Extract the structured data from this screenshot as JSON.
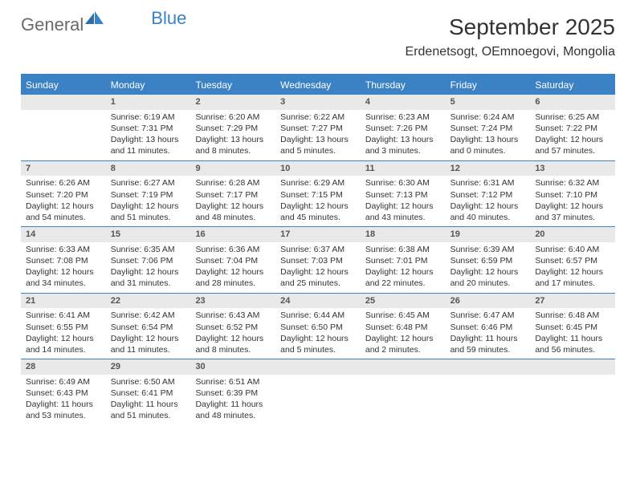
{
  "logo": {
    "general": "General",
    "blue": "Blue"
  },
  "title": "September 2025",
  "location": "Erdenetsogt, OEmnoegovi, Mongolia",
  "colors": {
    "accent": "#3b82c4",
    "header_bg": "#3b82c4",
    "header_text": "#ffffff",
    "daynum_bg": "#e9e9e9",
    "text": "#333333",
    "border": "#3b82c4"
  },
  "typography": {
    "title_fontsize": 28,
    "location_fontsize": 16,
    "dayhead_fontsize": 12,
    "cell_fontsize": 10.5
  },
  "layout": {
    "columns": 7,
    "rows": 5,
    "first_weekday": "Sunday"
  },
  "day_headers": [
    "Sunday",
    "Monday",
    "Tuesday",
    "Wednesday",
    "Thursday",
    "Friday",
    "Saturday"
  ],
  "weeks": [
    [
      {
        "blank": true
      },
      {
        "num": "1",
        "sunrise": "6:19 AM",
        "sunset": "7:31 PM",
        "daylight": "13 hours and 11 minutes."
      },
      {
        "num": "2",
        "sunrise": "6:20 AM",
        "sunset": "7:29 PM",
        "daylight": "13 hours and 8 minutes."
      },
      {
        "num": "3",
        "sunrise": "6:22 AM",
        "sunset": "7:27 PM",
        "daylight": "13 hours and 5 minutes."
      },
      {
        "num": "4",
        "sunrise": "6:23 AM",
        "sunset": "7:26 PM",
        "daylight": "13 hours and 3 minutes."
      },
      {
        "num": "5",
        "sunrise": "6:24 AM",
        "sunset": "7:24 PM",
        "daylight": "13 hours and 0 minutes."
      },
      {
        "num": "6",
        "sunrise": "6:25 AM",
        "sunset": "7:22 PM",
        "daylight": "12 hours and 57 minutes."
      }
    ],
    [
      {
        "num": "7",
        "sunrise": "6:26 AM",
        "sunset": "7:20 PM",
        "daylight": "12 hours and 54 minutes."
      },
      {
        "num": "8",
        "sunrise": "6:27 AM",
        "sunset": "7:19 PM",
        "daylight": "12 hours and 51 minutes."
      },
      {
        "num": "9",
        "sunrise": "6:28 AM",
        "sunset": "7:17 PM",
        "daylight": "12 hours and 48 minutes."
      },
      {
        "num": "10",
        "sunrise": "6:29 AM",
        "sunset": "7:15 PM",
        "daylight": "12 hours and 45 minutes."
      },
      {
        "num": "11",
        "sunrise": "6:30 AM",
        "sunset": "7:13 PM",
        "daylight": "12 hours and 43 minutes."
      },
      {
        "num": "12",
        "sunrise": "6:31 AM",
        "sunset": "7:12 PM",
        "daylight": "12 hours and 40 minutes."
      },
      {
        "num": "13",
        "sunrise": "6:32 AM",
        "sunset": "7:10 PM",
        "daylight": "12 hours and 37 minutes."
      }
    ],
    [
      {
        "num": "14",
        "sunrise": "6:33 AM",
        "sunset": "7:08 PM",
        "daylight": "12 hours and 34 minutes."
      },
      {
        "num": "15",
        "sunrise": "6:35 AM",
        "sunset": "7:06 PM",
        "daylight": "12 hours and 31 minutes."
      },
      {
        "num": "16",
        "sunrise": "6:36 AM",
        "sunset": "7:04 PM",
        "daylight": "12 hours and 28 minutes."
      },
      {
        "num": "17",
        "sunrise": "6:37 AM",
        "sunset": "7:03 PM",
        "daylight": "12 hours and 25 minutes."
      },
      {
        "num": "18",
        "sunrise": "6:38 AM",
        "sunset": "7:01 PM",
        "daylight": "12 hours and 22 minutes."
      },
      {
        "num": "19",
        "sunrise": "6:39 AM",
        "sunset": "6:59 PM",
        "daylight": "12 hours and 20 minutes."
      },
      {
        "num": "20",
        "sunrise": "6:40 AM",
        "sunset": "6:57 PM",
        "daylight": "12 hours and 17 minutes."
      }
    ],
    [
      {
        "num": "21",
        "sunrise": "6:41 AM",
        "sunset": "6:55 PM",
        "daylight": "12 hours and 14 minutes."
      },
      {
        "num": "22",
        "sunrise": "6:42 AM",
        "sunset": "6:54 PM",
        "daylight": "12 hours and 11 minutes."
      },
      {
        "num": "23",
        "sunrise": "6:43 AM",
        "sunset": "6:52 PM",
        "daylight": "12 hours and 8 minutes."
      },
      {
        "num": "24",
        "sunrise": "6:44 AM",
        "sunset": "6:50 PM",
        "daylight": "12 hours and 5 minutes."
      },
      {
        "num": "25",
        "sunrise": "6:45 AM",
        "sunset": "6:48 PM",
        "daylight": "12 hours and 2 minutes."
      },
      {
        "num": "26",
        "sunrise": "6:47 AM",
        "sunset": "6:46 PM",
        "daylight": "11 hours and 59 minutes."
      },
      {
        "num": "27",
        "sunrise": "6:48 AM",
        "sunset": "6:45 PM",
        "daylight": "11 hours and 56 minutes."
      }
    ],
    [
      {
        "num": "28",
        "sunrise": "6:49 AM",
        "sunset": "6:43 PM",
        "daylight": "11 hours and 53 minutes."
      },
      {
        "num": "29",
        "sunrise": "6:50 AM",
        "sunset": "6:41 PM",
        "daylight": "11 hours and 51 minutes."
      },
      {
        "num": "30",
        "sunrise": "6:51 AM",
        "sunset": "6:39 PM",
        "daylight": "11 hours and 48 minutes."
      },
      {
        "blank": true
      },
      {
        "blank": true
      },
      {
        "blank": true
      },
      {
        "blank": true
      }
    ]
  ],
  "labels": {
    "sunrise": "Sunrise:",
    "sunset": "Sunset:",
    "daylight": "Daylight:"
  }
}
